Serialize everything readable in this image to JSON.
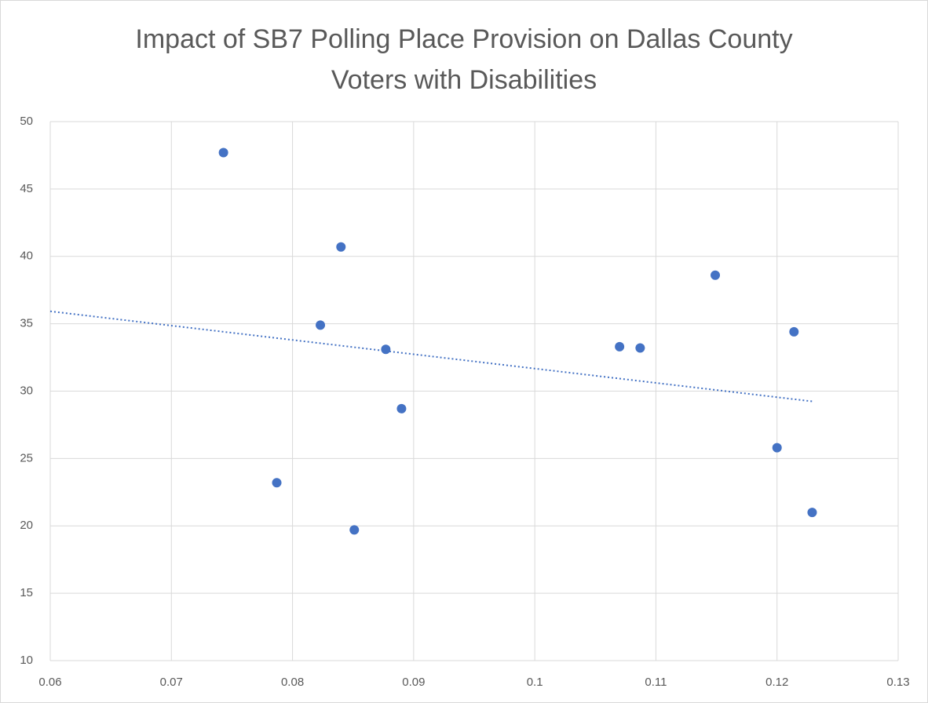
{
  "chart_data": {
    "type": "scatter",
    "title": "Impact of SB7 Polling Place Provision on Dallas County Voters with Disabilities",
    "series": [
      {
        "color": "#4472c4",
        "x": [
          0.0743,
          0.084,
          0.0823,
          0.0877,
          0.089,
          0.0787,
          0.0851,
          0.107,
          0.1087,
          0.1149,
          0.1214,
          0.12,
          0.1229
        ],
        "values": [
          47.7,
          40.7,
          34.9,
          33.1,
          28.7,
          23.2,
          19.7,
          33.3,
          33.2,
          38.6,
          34.4,
          25.8,
          21.0
        ]
      }
    ],
    "trendline": "linear",
    "xlim": [
      0.06,
      0.13
    ],
    "xticks": [
      0.06,
      0.07,
      0.08,
      0.09,
      0.1,
      0.11,
      0.12,
      0.13
    ],
    "ylim": [
      10,
      50
    ],
    "yticks": [
      10,
      15,
      20,
      25,
      30,
      35,
      40,
      45,
      50
    ],
    "grid": true
  }
}
